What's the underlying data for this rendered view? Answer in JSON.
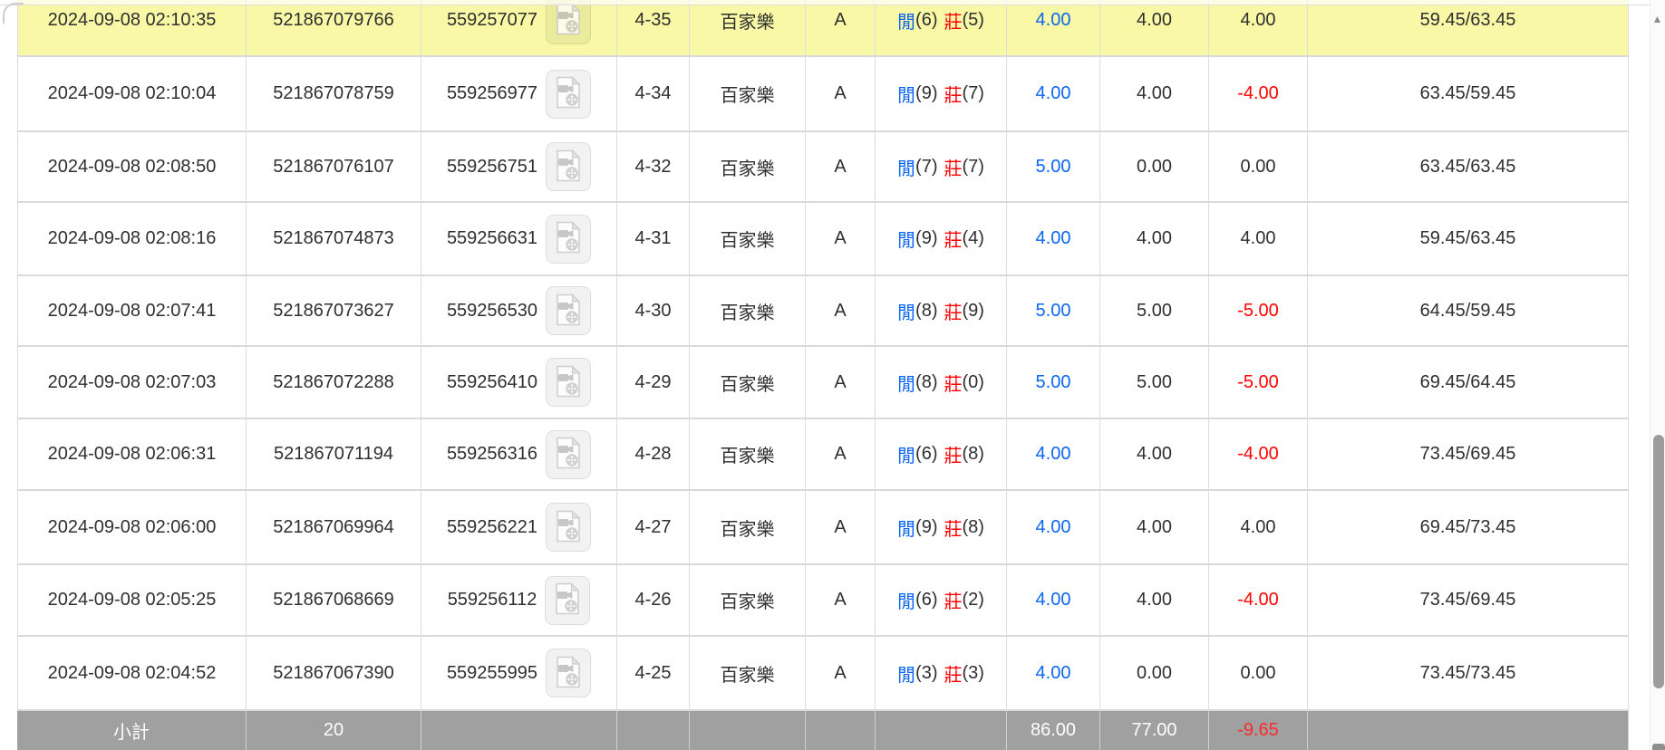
{
  "table": {
    "rows": [
      {
        "time": "2024-09-08 02:10:35",
        "order_id": "521867079766",
        "round_id": "559257077",
        "table_round": "4-35",
        "game": "百家樂",
        "table": "A",
        "result": {
          "p": "閒",
          "pn": "(6)",
          "b": "莊",
          "bn": "(5)"
        },
        "bet": "4.00",
        "valid_bet": "4.00",
        "win_loss": "4.00",
        "balance": "59.45/63.45",
        "highlighted": true
      },
      {
        "time": "2024-09-08 02:10:04",
        "order_id": "521867078759",
        "round_id": "559256977",
        "table_round": "4-34",
        "game": "百家樂",
        "table": "A",
        "result": {
          "p": "閒",
          "pn": "(9)",
          "b": "莊",
          "bn": "(7)"
        },
        "bet": "4.00",
        "valid_bet": "4.00",
        "win_loss": "-4.00",
        "balance": "63.45/59.45",
        "highlighted": false
      },
      {
        "time": "2024-09-08 02:08:50",
        "order_id": "521867076107",
        "round_id": "559256751",
        "table_round": "4-32",
        "game": "百家樂",
        "table": "A",
        "result": {
          "p": "閒",
          "pn": "(7)",
          "b": "莊",
          "bn": "(7)"
        },
        "bet": "5.00",
        "valid_bet": "0.00",
        "win_loss": "0.00",
        "balance": "63.45/63.45",
        "highlighted": false
      },
      {
        "time": "2024-09-08 02:08:16",
        "order_id": "521867074873",
        "round_id": "559256631",
        "table_round": "4-31",
        "game": "百家樂",
        "table": "A",
        "result": {
          "p": "閒",
          "pn": "(9)",
          "b": "莊",
          "bn": "(4)"
        },
        "bet": "4.00",
        "valid_bet": "4.00",
        "win_loss": "4.00",
        "balance": "59.45/63.45",
        "highlighted": false
      },
      {
        "time": "2024-09-08 02:07:41",
        "order_id": "521867073627",
        "round_id": "559256530",
        "table_round": "4-30",
        "game": "百家樂",
        "table": "A",
        "result": {
          "p": "閒",
          "pn": "(8)",
          "b": "莊",
          "bn": "(9)"
        },
        "bet": "5.00",
        "valid_bet": "5.00",
        "win_loss": "-5.00",
        "balance": "64.45/59.45",
        "highlighted": false
      },
      {
        "time": "2024-09-08 02:07:03",
        "order_id": "521867072288",
        "round_id": "559256410",
        "table_round": "4-29",
        "game": "百家樂",
        "table": "A",
        "result": {
          "p": "閒",
          "pn": "(8)",
          "b": "莊",
          "bn": "(0)"
        },
        "bet": "5.00",
        "valid_bet": "5.00",
        "win_loss": "-5.00",
        "balance": "69.45/64.45",
        "highlighted": false
      },
      {
        "time": "2024-09-08 02:06:31",
        "order_id": "521867071194",
        "round_id": "559256316",
        "table_round": "4-28",
        "game": "百家樂",
        "table": "A",
        "result": {
          "p": "閒",
          "pn": "(6)",
          "b": "莊",
          "bn": "(8)"
        },
        "bet": "4.00",
        "valid_bet": "4.00",
        "win_loss": "-4.00",
        "balance": "73.45/69.45",
        "highlighted": false
      },
      {
        "time": "2024-09-08 02:06:00",
        "order_id": "521867069964",
        "round_id": "559256221",
        "table_round": "4-27",
        "game": "百家樂",
        "table": "A",
        "result": {
          "p": "閒",
          "pn": "(9)",
          "b": "莊",
          "bn": "(8)"
        },
        "bet": "4.00",
        "valid_bet": "4.00",
        "win_loss": "4.00",
        "balance": "69.45/73.45",
        "highlighted": false
      },
      {
        "time": "2024-09-08 02:05:25",
        "order_id": "521867068669",
        "round_id": "559256112",
        "table_round": "4-26",
        "game": "百家樂",
        "table": "A",
        "result": {
          "p": "閒",
          "pn": "(6)",
          "b": "莊",
          "bn": "(2)"
        },
        "bet": "4.00",
        "valid_bet": "4.00",
        "win_loss": "-4.00",
        "balance": "73.45/69.45",
        "highlighted": false
      },
      {
        "time": "2024-09-08 02:04:52",
        "order_id": "521867067390",
        "round_id": "559255995",
        "table_round": "4-25",
        "game": "百家樂",
        "table": "A",
        "result": {
          "p": "閒",
          "pn": "(3)",
          "b": "莊",
          "bn": "(3)"
        },
        "bet": "4.00",
        "valid_bet": "0.00",
        "win_loss": "0.00",
        "balance": "73.45/73.45",
        "highlighted": false
      }
    ],
    "subtotal": {
      "label": "小計",
      "count": "20",
      "bet": "86.00",
      "valid_bet": "77.00",
      "win_loss": "-9.65"
    }
  },
  "colors": {
    "highlight_row": "#f8f8a6",
    "subtotal_bg": "#a0a0a0",
    "player_blue": "#0a66f0",
    "banker_red": "#ff0000",
    "bet_blue": "#0a66f0",
    "negative_red": "#ff0000",
    "subtotal_negative_red": "#ff2a2a"
  },
  "icons": {
    "video_replay": "film-document-with-camera-and-reel",
    "scroll_up_glyph": "▲"
  }
}
